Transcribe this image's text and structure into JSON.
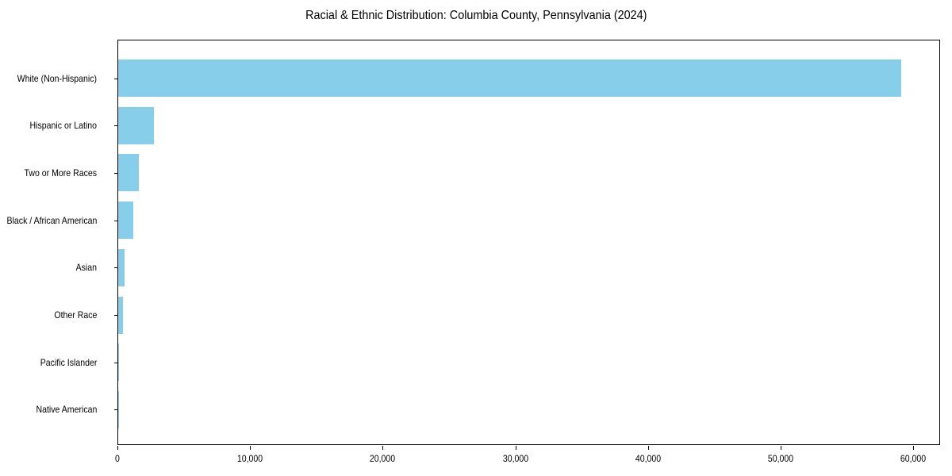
{
  "chart_data": {
    "type": "bar",
    "orientation": "horizontal",
    "title": "Racial & Ethnic Distribution: Columbia County, Pennsylvania (2024)",
    "xlabel": "",
    "ylabel": "",
    "xlim": [
      0,
      62000
    ],
    "x_ticks": [
      "0",
      "10,000",
      "20,000",
      "30,000",
      "40,000",
      "50,000",
      "60,000"
    ],
    "x_tick_values": [
      0,
      10000,
      20000,
      30000,
      40000,
      50000,
      60000
    ],
    "grid": false,
    "legend": null,
    "bar_color": "#87CEEB",
    "categories": [
      "White (Non-Hispanic)",
      "Hispanic or Latino",
      "Two or More Races",
      "Black / African American",
      "Asian",
      "Other Race",
      "Pacific Islander",
      "Native American"
    ],
    "values": [
      59070,
      2670,
      1555,
      1115,
      460,
      340,
      50,
      20
    ]
  }
}
